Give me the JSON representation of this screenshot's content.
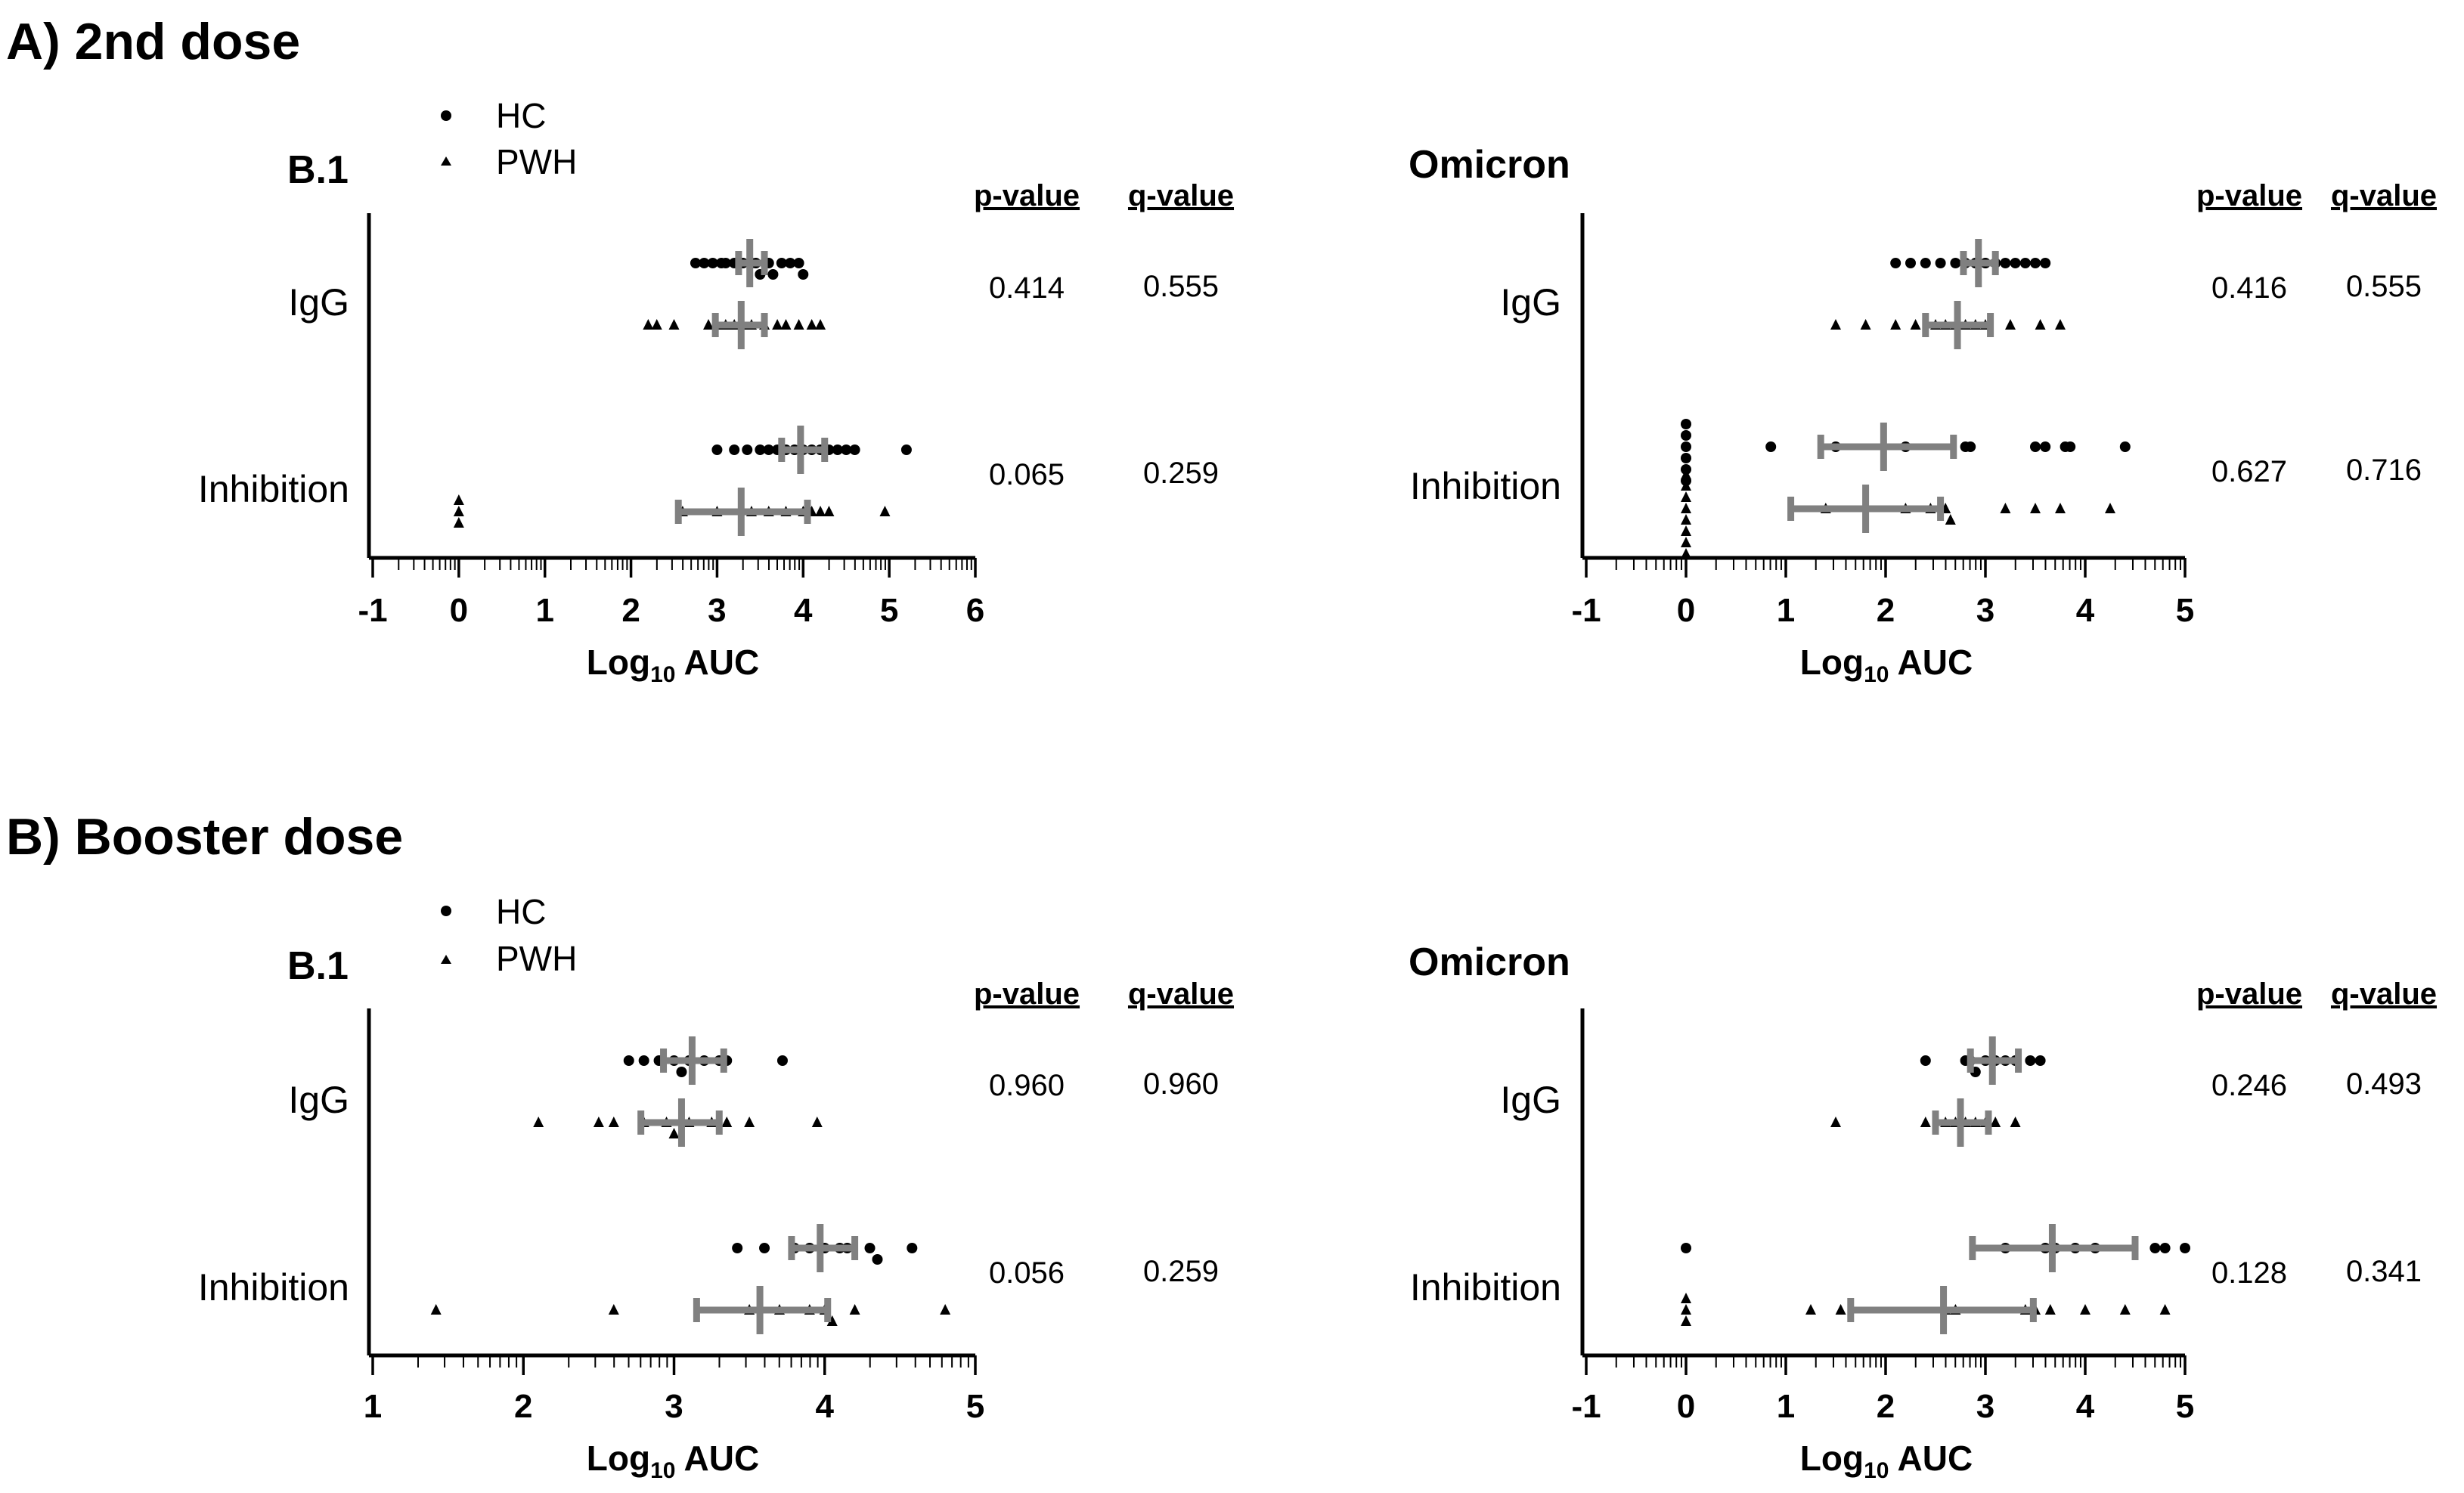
{
  "sections": [
    {
      "label": "A) 2nd dose",
      "legend": [
        {
          "marker": "circle",
          "label": "HC"
        },
        {
          "marker": "triangle",
          "label": "PWH"
        }
      ],
      "charts": [
        {
          "title": "B.1",
          "xlabel_main": "Log",
          "xlabel_sub": "10",
          "xlabel_rest": " AUC",
          "xlim": [
            -1,
            6
          ],
          "xticks": [
            "-1",
            "0",
            "1",
            "2",
            "3",
            "4",
            "5",
            "6"
          ],
          "stat_headers": [
            "p-value",
            "q-value"
          ],
          "rows": [
            {
              "category": "IgG",
              "p": "0.414",
              "q": "0.555",
              "HC": {
                "values": [
                  2.75,
                  2.85,
                  2.95,
                  3.05,
                  3.1,
                  3.2,
                  3.3,
                  3.4,
                  3.45,
                  3.5,
                  3.6,
                  3.65,
                  3.75,
                  3.85,
                  3.95,
                  4.0
                ],
                "median": 3.38,
                "q1": 3.25,
                "q3": 3.55
              },
              "PWH": {
                "values": [
                  2.2,
                  2.3,
                  2.5,
                  2.9,
                  3.0,
                  3.1,
                  3.2,
                  3.3,
                  3.4,
                  3.55,
                  3.7,
                  3.8,
                  3.95,
                  4.1,
                  4.2
                ],
                "median": 3.28,
                "q1": 2.98,
                "q3": 3.55
              }
            },
            {
              "category": "Inhibition",
              "p": "0.065",
              "q": "0.259",
              "HC": {
                "values": [
                  3.0,
                  3.2,
                  3.35,
                  3.5,
                  3.6,
                  3.7,
                  3.8,
                  3.9,
                  4.0,
                  4.1,
                  4.2,
                  4.3,
                  4.4,
                  4.5,
                  4.6,
                  5.2
                ],
                "median": 3.97,
                "q1": 3.75,
                "q3": 4.25
              },
              "PWH": {
                "values": [
                  0.0,
                  0.0,
                  0.0,
                  2.6,
                  3.0,
                  3.4,
                  3.6,
                  3.8,
                  4.0,
                  4.1,
                  4.2,
                  4.3,
                  4.95
                ],
                "median": 3.28,
                "q1": 2.55,
                "q3": 4.05
              }
            }
          ]
        },
        {
          "title": "Omicron",
          "xlabel_main": "Log",
          "xlabel_sub": "10",
          "xlabel_rest": " AUC",
          "xlim": [
            -1,
            5
          ],
          "xticks": [
            "-1",
            "0",
            "1",
            "2",
            "3",
            "4",
            "5"
          ],
          "stat_headers": [
            "p-value",
            "q-value"
          ],
          "rows": [
            {
              "category": "IgG",
              "p": "0.416",
              "q": "0.555",
              "HC": {
                "values": [
                  2.1,
                  2.25,
                  2.4,
                  2.55,
                  2.7,
                  2.8,
                  2.9,
                  3.0,
                  3.1,
                  3.2,
                  3.3,
                  3.4,
                  3.5,
                  3.6
                ],
                "median": 2.93,
                "q1": 2.78,
                "q3": 3.1
              },
              "PWH": {
                "values": [
                  1.5,
                  1.8,
                  2.1,
                  2.3,
                  2.5,
                  2.6,
                  2.7,
                  2.8,
                  2.9,
                  3.0,
                  3.25,
                  3.55,
                  3.75
                ],
                "median": 2.72,
                "q1": 2.4,
                "q3": 3.05
              }
            },
            {
              "category": "Inhibition",
              "p": "0.627",
              "q": "0.716",
              "HC": {
                "values": [
                  0,
                  0,
                  0,
                  0,
                  0,
                  0,
                  0.85,
                  1.5,
                  2.2,
                  2.8,
                  2.85,
                  3.5,
                  3.6,
                  3.8,
                  3.85,
                  4.4
                ],
                "median": 1.98,
                "q1": 1.35,
                "q3": 2.68
              },
              "PWH": {
                "values": [
                  0,
                  0,
                  0,
                  0,
                  0,
                  0,
                  0,
                  0,
                  1.4,
                  2.2,
                  2.45,
                  2.6,
                  2.65,
                  3.2,
                  3.5,
                  3.75,
                  4.25
                ],
                "median": 1.8,
                "q1": 1.05,
                "q3": 2.55
              }
            }
          ]
        }
      ]
    },
    {
      "label": "B) Booster dose",
      "legend": [
        {
          "marker": "circle",
          "label": "HC"
        },
        {
          "marker": "triangle",
          "label": "PWH"
        }
      ],
      "charts": [
        {
          "title": "B.1",
          "xlabel_main": "Log",
          "xlabel_sub": "10",
          "xlabel_rest": " AUC",
          "xlim": [
            1,
            5
          ],
          "xticks": [
            "1",
            "2",
            "3",
            "4",
            "5"
          ],
          "stat_headers": [
            "p-value",
            "q-value"
          ],
          "rows": [
            {
              "category": "IgG",
              "p": "0.960",
              "q": "0.960",
              "HC": {
                "values": [
                  2.7,
                  2.8,
                  2.9,
                  3.0,
                  3.05,
                  3.1,
                  3.2,
                  3.3,
                  3.35,
                  3.72
                ],
                "median": 3.12,
                "q1": 2.93,
                "q3": 3.33
              },
              "PWH": {
                "values": [
                  2.1,
                  2.5,
                  2.6,
                  2.8,
                  2.95,
                  3.0,
                  3.1,
                  3.25,
                  3.35,
                  3.5,
                  3.95
                ],
                "median": 3.05,
                "q1": 2.78,
                "q3": 3.3
              }
            },
            {
              "category": "Inhibition",
              "p": "0.056",
              "q": "0.259",
              "HC": {
                "values": [
                  3.42,
                  3.6,
                  3.8,
                  3.9,
                  4.0,
                  4.1,
                  4.15,
                  4.3,
                  4.35,
                  4.58
                ],
                "median": 3.97,
                "q1": 3.78,
                "q3": 4.2
              },
              "PWH": {
                "values": [
                  1.42,
                  2.6,
                  3.5,
                  3.7,
                  3.9,
                  4.0,
                  4.05,
                  4.2,
                  4.8
                ],
                "median": 3.57,
                "q1": 3.15,
                "q3": 4.02
              }
            }
          ]
        },
        {
          "title": "Omicron",
          "xlabel_main": "Log",
          "xlabel_sub": "10",
          "xlabel_rest": " AUC",
          "xlim": [
            -1,
            5
          ],
          "xticks": [
            "-1",
            "0",
            "1",
            "2",
            "3",
            "4",
            "5"
          ],
          "stat_headers": [
            "p-value",
            "q-value"
          ],
          "rows": [
            {
              "category": "IgG",
              "p": "0.246",
              "q": "0.493",
              "HC": {
                "values": [
                  2.4,
                  2.8,
                  2.85,
                  2.9,
                  3.0,
                  3.1,
                  3.2,
                  3.3,
                  3.45,
                  3.55
                ],
                "median": 3.07,
                "q1": 2.85,
                "q3": 3.33
              },
              "PWH": {
                "values": [
                  1.5,
                  2.4,
                  2.6,
                  2.7,
                  2.8,
                  2.9,
                  3.0,
                  3.1,
                  3.3
                ],
                "median": 2.75,
                "q1": 2.5,
                "q3": 3.03
              }
            },
            {
              "category": "Inhibition",
              "p": "0.128",
              "q": "0.341",
              "HC": {
                "values": [
                  0,
                  3.2,
                  3.6,
                  3.7,
                  3.9,
                  4.1,
                  4.7,
                  4.8,
                  5.0
                ],
                "median": 3.67,
                "q1": 2.87,
                "q3": 4.5
              },
              "PWH": {
                "values": [
                  0,
                  0,
                  0,
                  1.25,
                  1.55,
                  2.6,
                  2.7,
                  3.4,
                  3.5,
                  3.65,
                  4.0,
                  4.4,
                  4.8
                ],
                "median": 2.58,
                "q1": 1.65,
                "q3": 3.48
              }
            }
          ]
        }
      ]
    }
  ],
  "chart_data": [
    {
      "type": "scatter",
      "title": "B.1",
      "panel": "A) 2nd dose",
      "categories": [
        "IgG",
        "Inhibition"
      ],
      "groups": [
        "HC",
        "PWH"
      ],
      "xlabel": "Log10 AUC",
      "xlim": [
        -1,
        6
      ]
    },
    {
      "type": "scatter",
      "title": "Omicron",
      "panel": "A) 2nd dose",
      "categories": [
        "IgG",
        "Inhibition"
      ],
      "groups": [
        "HC",
        "PWH"
      ],
      "xlabel": "Log10 AUC",
      "xlim": [
        -1,
        5
      ]
    },
    {
      "type": "scatter",
      "title": "B.1",
      "panel": "B) Booster dose",
      "categories": [
        "IgG",
        "Inhibition"
      ],
      "groups": [
        "HC",
        "PWH"
      ],
      "xlabel": "Log10 AUC",
      "xlim": [
        1,
        5
      ]
    },
    {
      "type": "scatter",
      "title": "Omicron",
      "panel": "B) Booster dose",
      "categories": [
        "IgG",
        "Inhibition"
      ],
      "groups": [
        "HC",
        "PWH"
      ],
      "xlabel": "Log10 AUC",
      "xlim": [
        -1,
        5
      ]
    }
  ]
}
